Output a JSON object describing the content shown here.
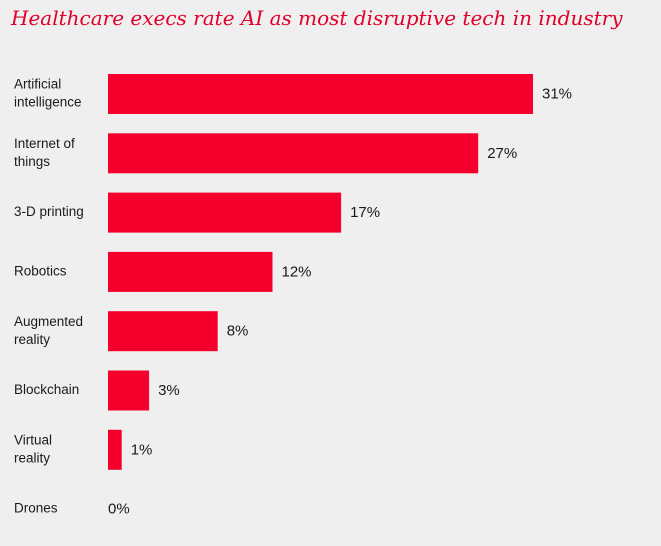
{
  "chart_data": {
    "type": "bar",
    "orientation": "horizontal",
    "title": "Healthcare execs rate AI as most disruptive tech in industry",
    "categories": [
      [
        "Artificial",
        "intelligence"
      ],
      [
        "Internet of",
        "things"
      ],
      [
        "3-D printing"
      ],
      [
        "Robotics"
      ],
      [
        "Augmented",
        "reality"
      ],
      [
        "Blockchain"
      ],
      [
        "Virtual",
        "reality"
      ],
      [
        "Drones"
      ]
    ],
    "values": [
      31,
      27,
      17,
      12,
      8,
      3,
      1,
      0
    ],
    "value_labels": [
      "31%",
      "27%",
      "17%",
      "12%",
      "8%",
      "3%",
      "1%",
      "0%"
    ],
    "xlim": [
      0,
      31
    ],
    "bar_color": "#f5002d",
    "grid": false,
    "legend": "none"
  }
}
